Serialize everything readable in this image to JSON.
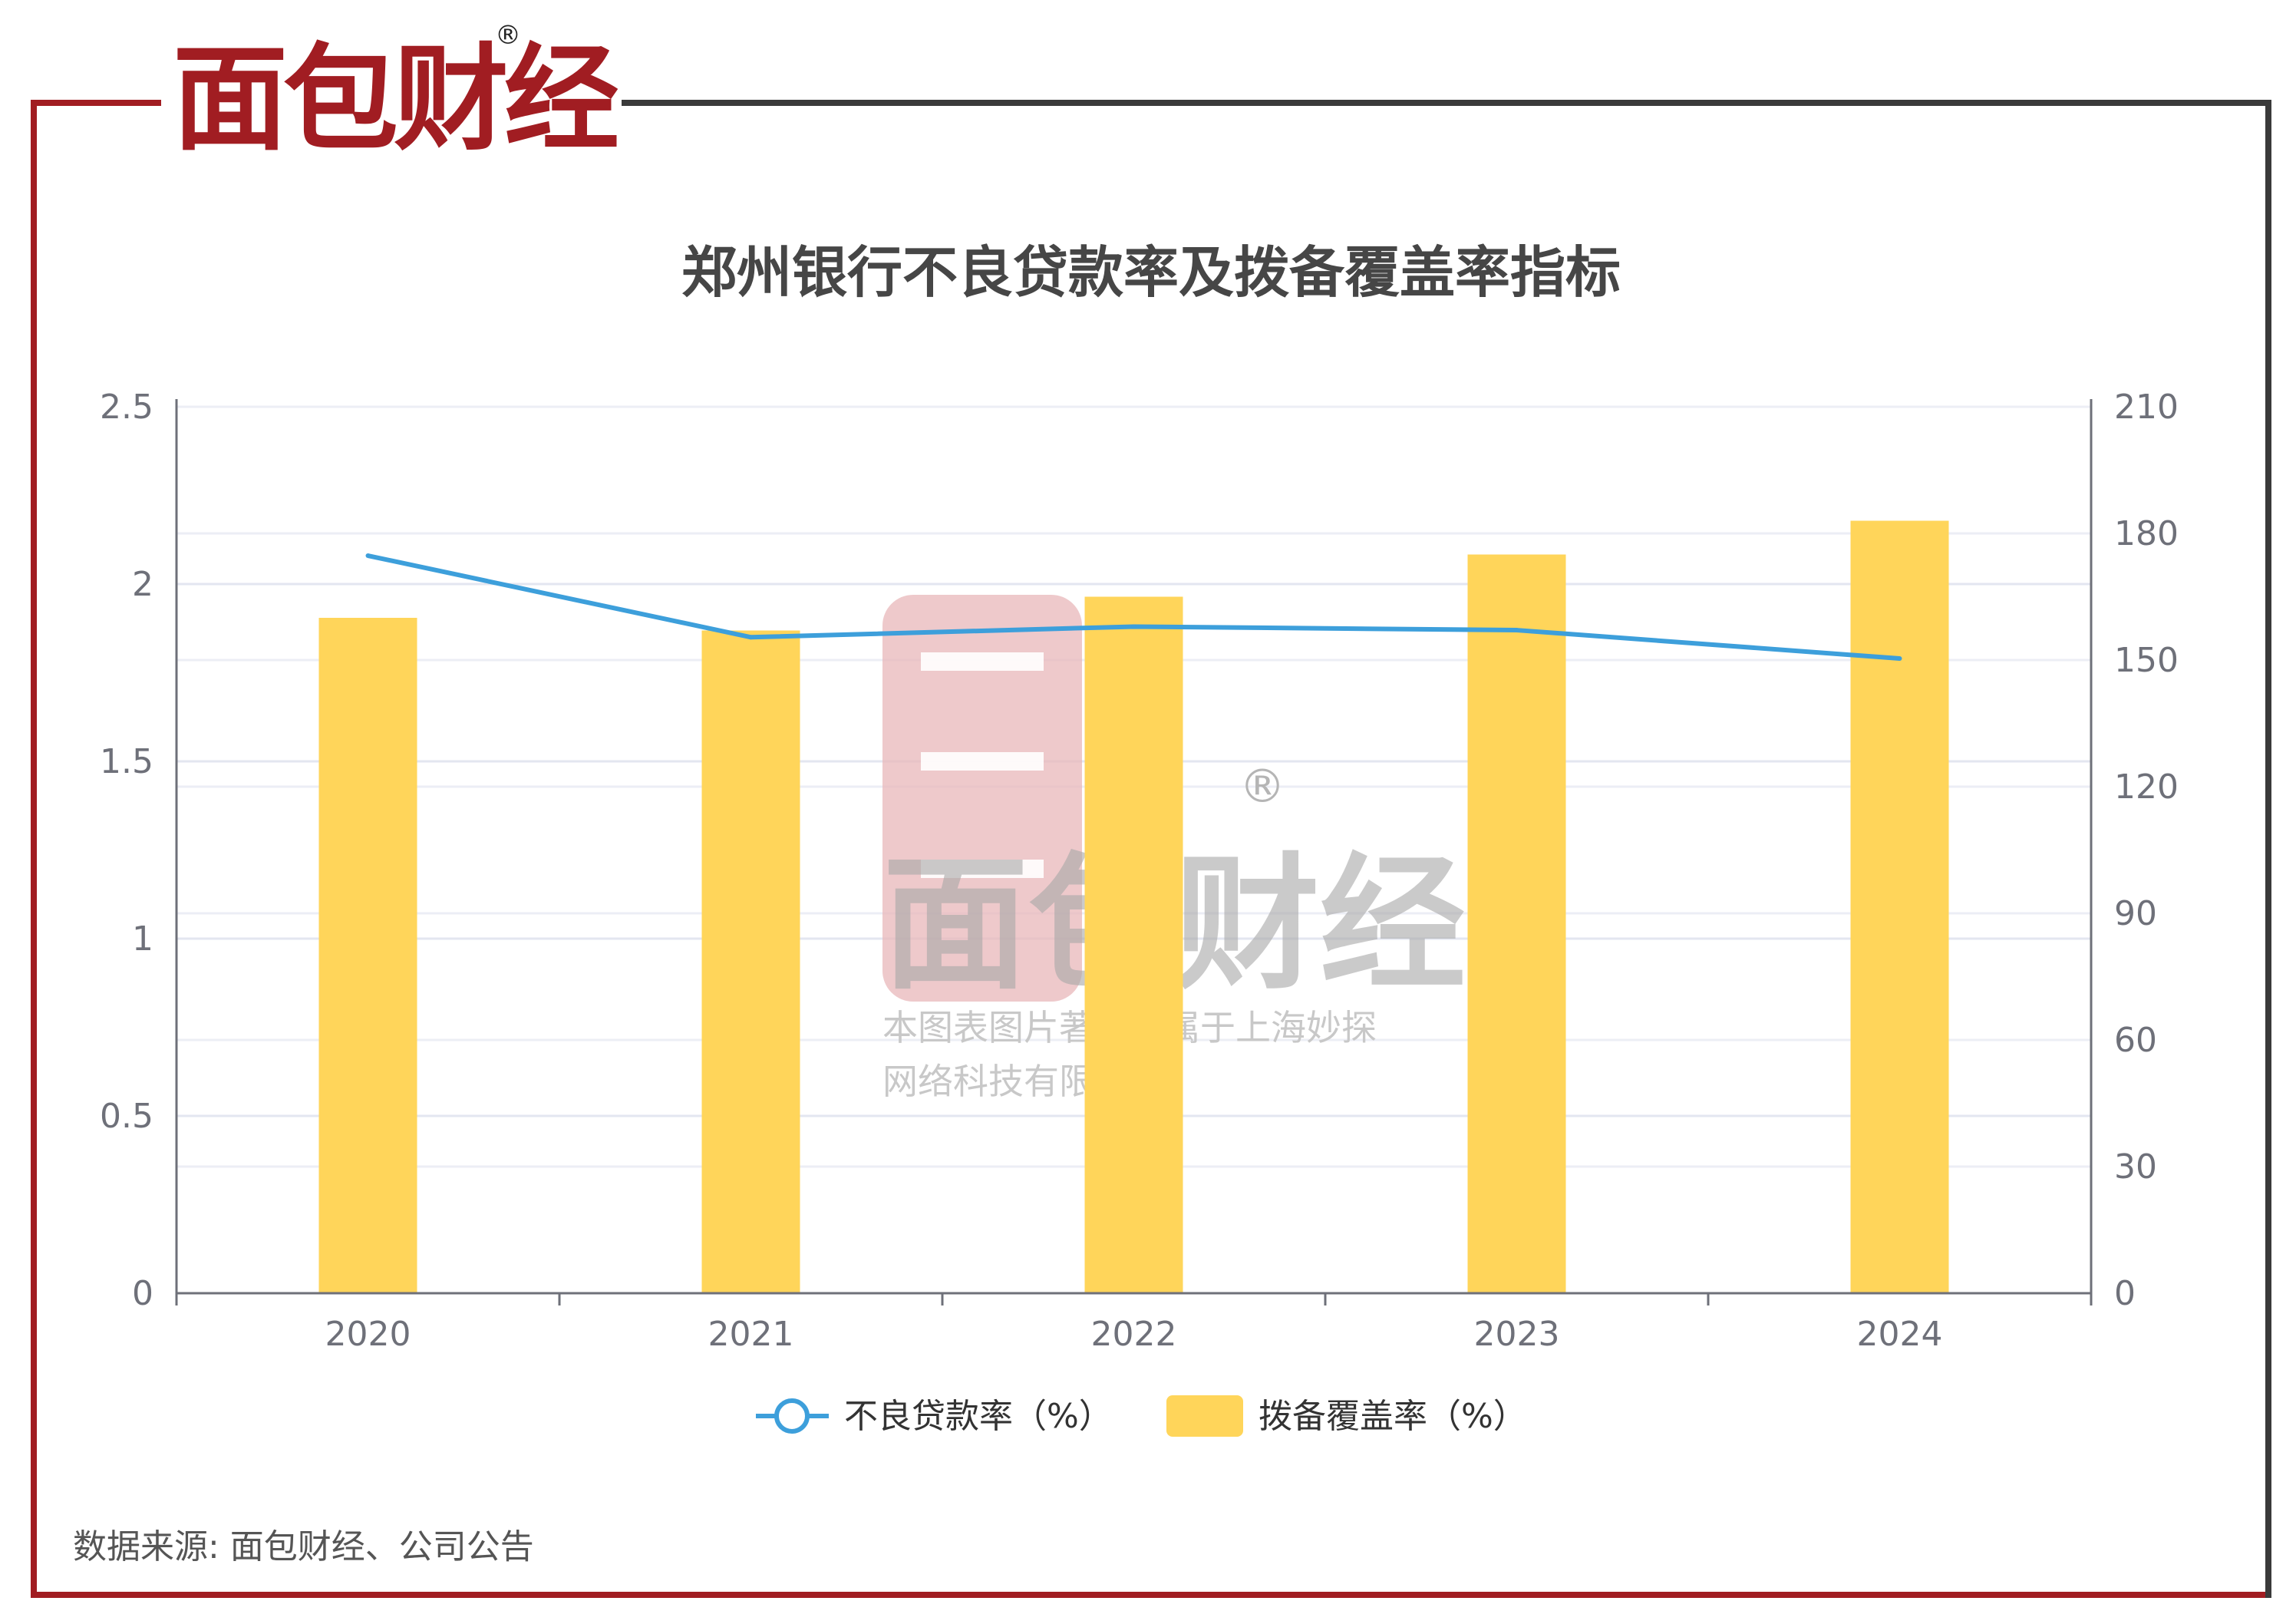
{
  "brand": {
    "logo_text": "面包财经",
    "registered_mark": "®",
    "color": "#a11d22"
  },
  "watermark": {
    "logo_text": "面包财经",
    "registered_mark": "®",
    "line1": "本图表图片著作权属于上海妙探",
    "line2": "网络科技有限公司"
  },
  "source_note": "数据来源: 面包财经、公司公告",
  "chart_data": {
    "type": "bar+line",
    "title": "郑州银行不良贷款率及拨备覆盖率指标",
    "categories": [
      "2020",
      "2021",
      "2022",
      "2023",
      "2024"
    ],
    "y_left": {
      "ticks": [
        "0",
        "0.5",
        "1",
        "1.5",
        "2",
        "2.5"
      ],
      "range": [
        0,
        2.5
      ]
    },
    "y_right": {
      "ticks": [
        "0",
        "30",
        "60",
        "90",
        "120",
        "150",
        "180",
        "210"
      ],
      "range": [
        0,
        210
      ]
    },
    "grid": true,
    "legend_position": "bottom",
    "series": [
      {
        "name": "不良贷款率（%）",
        "type": "line",
        "axis": "left",
        "color": "#3d9fdb",
        "values": [
          2.08,
          1.85,
          1.88,
          1.87,
          1.79
        ]
      },
      {
        "name": "拨备覆盖率（%）",
        "type": "bar",
        "axis": "right",
        "color": "#ffd55a",
        "values": [
          160.0,
          157.0,
          165.0,
          175.0,
          183.0
        ]
      }
    ]
  }
}
